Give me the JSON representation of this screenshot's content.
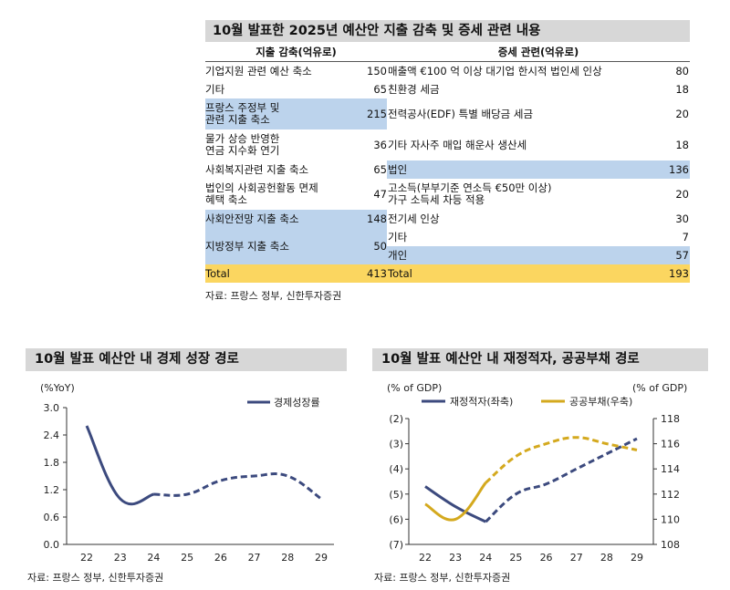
{
  "table": {
    "title": "10월 발표한 2025년 예산안 지출 감축 및 증세 관련 내용",
    "header_left": "지출 감축(억유로)",
    "header_right": "증세 관련(억유로)",
    "rows": [
      {
        "l_label": [
          "기업지원 관련 예산 축소"
        ],
        "l_val": "150",
        "r_label": [
          "매출액 €100 억 이상 대기업 한시적 법인세 인상"
        ],
        "r_val": "80",
        "l_hl": false,
        "r_hl": false
      },
      {
        "l_label": [
          "기타"
        ],
        "l_val": "65",
        "r_label": [
          "친환경 세금"
        ],
        "r_val": "18",
        "l_hl": false,
        "r_hl": false
      },
      {
        "l_label": [
          "프랑스 주정부 및",
          "관련 지출 축소"
        ],
        "l_val": "215",
        "r_label": [
          "전력공사(EDF) 특별 배당금 세금"
        ],
        "r_val": "20",
        "l_hl": true,
        "r_hl": false
      },
      {
        "l_label": [
          "물가 상승 반영한",
          "연금 지수화 연기"
        ],
        "l_val": "36",
        "r_label": [
          "기타 자사주 매입 해운사 생산세"
        ],
        "r_val": "18",
        "l_hl": false,
        "r_hl": false
      },
      {
        "l_label": [
          "사회복지관련 지출 축소"
        ],
        "l_val": "65",
        "r_label": [
          "법인"
        ],
        "r_val": "136",
        "l_hl": false,
        "r_hl": true
      },
      {
        "l_label": [
          "법인의 사회공헌활동 면제",
          "혜택 축소"
        ],
        "l_val": "47",
        "r_label": [
          "고소득(부부기준 연소득 €50만 이상)",
          "가구 소득세 차등 적용"
        ],
        "r_val": "20",
        "l_hl": false,
        "r_hl": false
      }
    ],
    "merged_rows": {
      "left": [
        {
          "label": "사회안전망 지출 축소",
          "val": "148"
        },
        {
          "label": "지방정부 지출 축소",
          "val": "50"
        }
      ],
      "right": [
        {
          "label": "전기세 인상",
          "val": "30"
        },
        {
          "label": "기타",
          "val": "7"
        },
        {
          "label": "개인",
          "val": "57"
        }
      ]
    },
    "total": {
      "l_label": "Total",
      "l_val": "413",
      "r_label": "Total",
      "r_val": "193"
    },
    "source": "자료: 프랑스 정부, 신한투자증권"
  },
  "chart_data": [
    {
      "type": "line",
      "title": "10월 발표 예산안 내 경제 성장 경로",
      "ylabel": "(%YoY)",
      "x": [
        "22",
        "23",
        "24",
        "25",
        "26",
        "27",
        "28",
        "29"
      ],
      "ylim": [
        0.0,
        3.0
      ],
      "yticks": [
        "3.0",
        "2.4",
        "1.8",
        "1.2",
        "0.6",
        "0.0"
      ],
      "series": [
        {
          "name": "경제성장률",
          "values": [
            2.6,
            1.0,
            1.1,
            1.1,
            1.4,
            1.5,
            1.5,
            1.0
          ],
          "color": "#3c4a7e",
          "solid_until_index": 2
        }
      ],
      "legend": "top-right",
      "grid": false,
      "source": "자료: 프랑스 정부, 신한투자증권"
    },
    {
      "type": "line",
      "title": "10월 발표 예산안 내 재정적자, 공공부채 경로",
      "ylabel_left": "(% of GDP)",
      "ylabel_right": "(% of GDP)",
      "x": [
        "22",
        "23",
        "24",
        "25",
        "26",
        "27",
        "28",
        "29"
      ],
      "ylim_left": [
        -7,
        -2
      ],
      "ylim_right": [
        108,
        118
      ],
      "yticks_left": [
        "(2)",
        "(3)",
        "(4)",
        "(5)",
        "(6)",
        "(7)"
      ],
      "yticks_right": [
        "118",
        "116",
        "114",
        "112",
        "110",
        "108"
      ],
      "series": [
        {
          "name": "재정적자(좌축)",
          "axis": "left",
          "values": [
            -4.7,
            -5.5,
            -6.1,
            -5.0,
            -4.6,
            -4.0,
            -3.4,
            -2.8
          ],
          "color": "#3c4a7e",
          "solid_until_index": 2
        },
        {
          "name": "공공부채(우축)",
          "axis": "right",
          "values": [
            111.2,
            110.0,
            112.9,
            115.0,
            116.0,
            116.5,
            116.0,
            115.5
          ],
          "color": "#d4a91e",
          "solid_until_index": 2
        }
      ],
      "legend": "top",
      "grid": false,
      "source": "자료: 프랑스 정부, 신한투자증권"
    }
  ]
}
